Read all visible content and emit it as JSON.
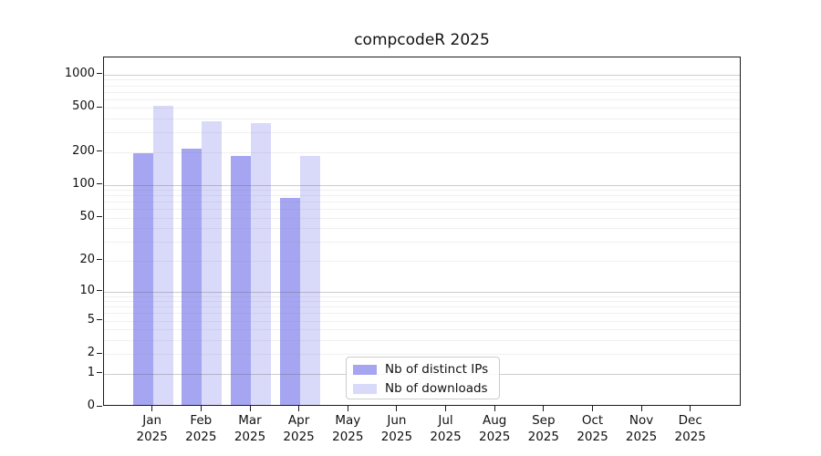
{
  "chart_data": {
    "type": "bar",
    "title": "compcodeR 2025",
    "categories": [
      {
        "month": "Jan",
        "year": "2025"
      },
      {
        "month": "Feb",
        "year": "2025"
      },
      {
        "month": "Mar",
        "year": "2025"
      },
      {
        "month": "Apr",
        "year": "2025"
      },
      {
        "month": "May",
        "year": "2025"
      },
      {
        "month": "Jun",
        "year": "2025"
      },
      {
        "month": "Jul",
        "year": "2025"
      },
      {
        "month": "Aug",
        "year": "2025"
      },
      {
        "month": "Sep",
        "year": "2025"
      },
      {
        "month": "Oct",
        "year": "2025"
      },
      {
        "month": "Nov",
        "year": "2025"
      },
      {
        "month": "Dec",
        "year": "2025"
      }
    ],
    "series": [
      {
        "name": "Nb of distinct IPs",
        "color": "#a5a5f2",
        "values": [
          186,
          207,
          178,
          73,
          null,
          null,
          null,
          null,
          null,
          null,
          null,
          null
        ]
      },
      {
        "name": "Nb of downloads",
        "color": "#d9d9fa",
        "values": [
          500,
          362,
          350,
          177,
          null,
          null,
          null,
          null,
          null,
          null,
          null,
          null
        ]
      }
    ],
    "yscale": "log1p",
    "yticks": [
      0,
      1,
      2,
      5,
      10,
      20,
      50,
      100,
      200,
      500,
      1000
    ],
    "ylim": [
      0,
      1430
    ],
    "grid": "horizontal log major+minor",
    "legend_position": "inside lower-center-left"
  },
  "colors": {
    "axis_line": "#1b1b1b",
    "text": "#111111",
    "grid_major": "#d1d1d1",
    "grid_minor": "#ececec",
    "legend_border": "#cccccc",
    "background": "#ffffff"
  }
}
